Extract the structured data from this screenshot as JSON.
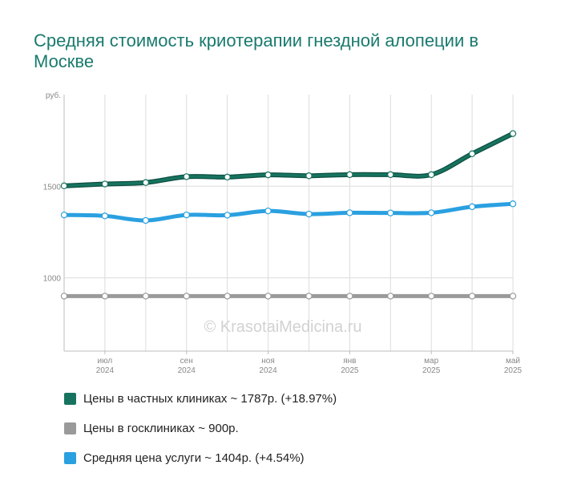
{
  "title": "Средняя стоимость криотерапии гнездной алопеции в Москве",
  "watermark": "© KrasotaiMedicina.ru",
  "colors": {
    "private": "#17735f",
    "public": "#9a9a9a",
    "average": "#2aa0e0"
  },
  "legend": [
    {
      "label": "Цены в частных клиниках ~ 1787р. (+18.97%)",
      "color": "#17735f"
    },
    {
      "label": "Цены в госклиниках ~ 900р.",
      "color": "#9a9a9a"
    },
    {
      "label": "Средняя цена услуги ~ 1404р. (+4.54%)",
      "color": "#2aa0e0"
    }
  ],
  "chart_data": {
    "type": "line",
    "title": "Средняя стоимость криотерапии гнездной алопеции в Москве",
    "ylabel": "руб.",
    "ylim": [
      600,
      2000
    ],
    "yticks": [
      {
        "value": 1000,
        "label": "1000"
      },
      {
        "value": 1500,
        "label": "1500"
      }
    ],
    "x": [
      "2024-06",
      "2024-07",
      "2024-08",
      "2024-09",
      "2024-10",
      "2024-11",
      "2024-12",
      "2025-01",
      "2025-02",
      "2025-03",
      "2025-04",
      "2025-05"
    ],
    "xtick_labels": [
      {
        "index": 1,
        "line1": "июл",
        "line2": "2024"
      },
      {
        "index": 3,
        "line1": "сен",
        "line2": "2024"
      },
      {
        "index": 5,
        "line1": "ноя",
        "line2": "2024"
      },
      {
        "index": 7,
        "line1": "янв",
        "line2": "2025"
      },
      {
        "index": 9,
        "line1": "мар",
        "line2": "2025"
      },
      {
        "index": 11,
        "line1": "май",
        "line2": "2025"
      }
    ],
    "series": [
      {
        "name": "Цены в частных клиниках",
        "key": "private",
        "values": [
          1502,
          1512,
          1520,
          1552,
          1550,
          1562,
          1557,
          1563,
          1563,
          1563,
          1677,
          1787
        ]
      },
      {
        "name": "Цены в госклиниках",
        "key": "public",
        "values": [
          900,
          900,
          900,
          900,
          900,
          900,
          900,
          900,
          900,
          900,
          900,
          900
        ]
      },
      {
        "name": "Средняя цена услуги",
        "key": "average",
        "values": [
          1343,
          1338,
          1313,
          1343,
          1342,
          1365,
          1348,
          1355,
          1354,
          1355,
          1388,
          1404
        ]
      }
    ]
  }
}
